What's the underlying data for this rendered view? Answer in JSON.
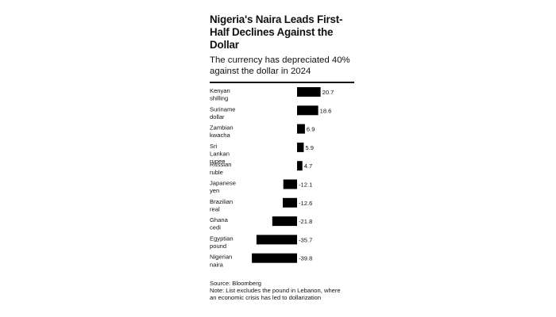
{
  "title": "Nigeria's Naira Leads First-Half Declines Against the Dollar",
  "subtitle": "The currency has depreciated 40% against the dollar in 2024",
  "source": "Source: Bloomberg",
  "note_lines": [
    "Note: List excludes the pound in Lebanon, where",
    "an economic crisis has led to dollarization"
  ],
  "colors": {
    "bar": "#000000",
    "text": "#111111",
    "rule": "#111111"
  },
  "chart_data": {
    "type": "bar",
    "orientation": "horizontal",
    "title": "Nigeria's Naira Leads First-Half Declines Against the Dollar",
    "subtitle": "The currency has depreciated 40% against the dollar in 2024",
    "categories": [
      [
        "Kenyan",
        "shilling"
      ],
      [
        "Suriname",
        "dollar"
      ],
      [
        "Zambian",
        "kwacha"
      ],
      [
        "Sri",
        "Lankan",
        "rupee"
      ],
      [
        "Russian",
        "ruble"
      ],
      [
        "Japanese",
        "yen"
      ],
      [
        "Brazilian",
        "real"
      ],
      [
        "Ghana",
        "cedi"
      ],
      [
        "Egyptian",
        "pound"
      ],
      [
        "Nigerian",
        "naira"
      ]
    ],
    "values": [
      20.7,
      18.6,
      6.9,
      5.9,
      4.7,
      -12.1,
      -12.6,
      -21.8,
      -35.7,
      -39.8
    ],
    "value_labels": [
      "20.7",
      "18.6",
      "6.9",
      "5.9",
      "4.7",
      "-12.1",
      "-12.6",
      "-21.8",
      "-35.7",
      "-39.8"
    ],
    "xlim": [
      -40,
      21
    ],
    "grid": false,
    "legend": "none"
  }
}
